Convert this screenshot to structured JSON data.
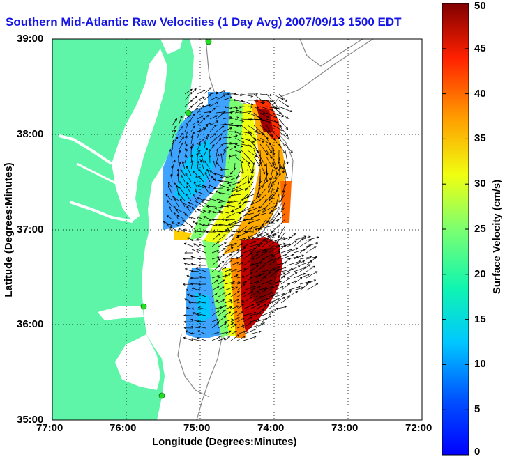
{
  "title": "Southern Mid-Atlantic Raw Velocities (1 Day Avg) 2007/09/13 1500 EDT",
  "axes": {
    "xlabel": "Longitude (Degrees:Minutes)",
    "ylabel": "Latitude (Degrees:Minutes)",
    "x_ticks": [
      "77:00",
      "76:00",
      "75:00",
      "74:00",
      "73:00",
      "72:00"
    ],
    "y_ticks": [
      "39:00",
      "38:00",
      "37:00",
      "36:00",
      "35:00"
    ],
    "xlim_deg_west": [
      77,
      72
    ],
    "ylim_deg_north": [
      35,
      39
    ],
    "grid": "dotted"
  },
  "colorbar": {
    "label": "Surface Velocity (cm/s)",
    "ticks": [
      "0",
      "5",
      "10",
      "15",
      "20",
      "25",
      "30",
      "35",
      "40",
      "45",
      "50"
    ],
    "range": [
      0,
      50
    ],
    "colormap": "jet"
  },
  "colors": {
    "land": "#5ef5a8",
    "water": "#ffffff",
    "title": "#1515e6",
    "bathymetry": "#888888",
    "stations": "#22dd22"
  }
}
